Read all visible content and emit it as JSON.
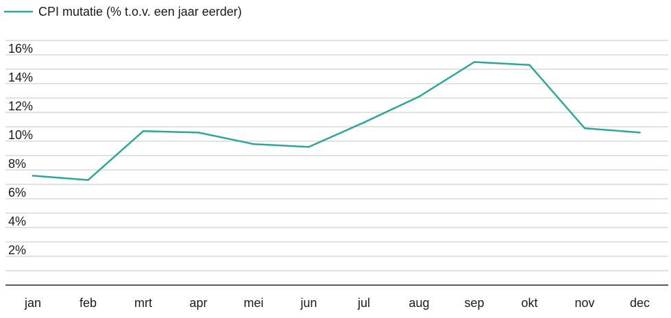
{
  "chart_data": {
    "type": "line",
    "categories": [
      "jan",
      "feb",
      "mrt",
      "apr",
      "mei",
      "jun",
      "jul",
      "aug",
      "sep",
      "okt",
      "nov",
      "dec"
    ],
    "series": [
      {
        "name": "CPI mutatie (% t.o.v. een jaar eerder)",
        "values": [
          7.6,
          7.3,
          10.7,
          10.6,
          9.8,
          9.6,
          11.3,
          13.1,
          15.5,
          15.3,
          10.9,
          10.6
        ],
        "color": "#2aa69a"
      }
    ],
    "yticks": [
      "2%",
      "4%",
      "6%",
      "8%",
      "10%",
      "12%",
      "14%",
      "16%"
    ],
    "ylim": [
      0,
      17
    ],
    "grid": true,
    "legend_position": "top-left",
    "colors": {
      "grid": "#d9d9d9",
      "axis": "#222222",
      "text": "#1a1a1a"
    }
  }
}
